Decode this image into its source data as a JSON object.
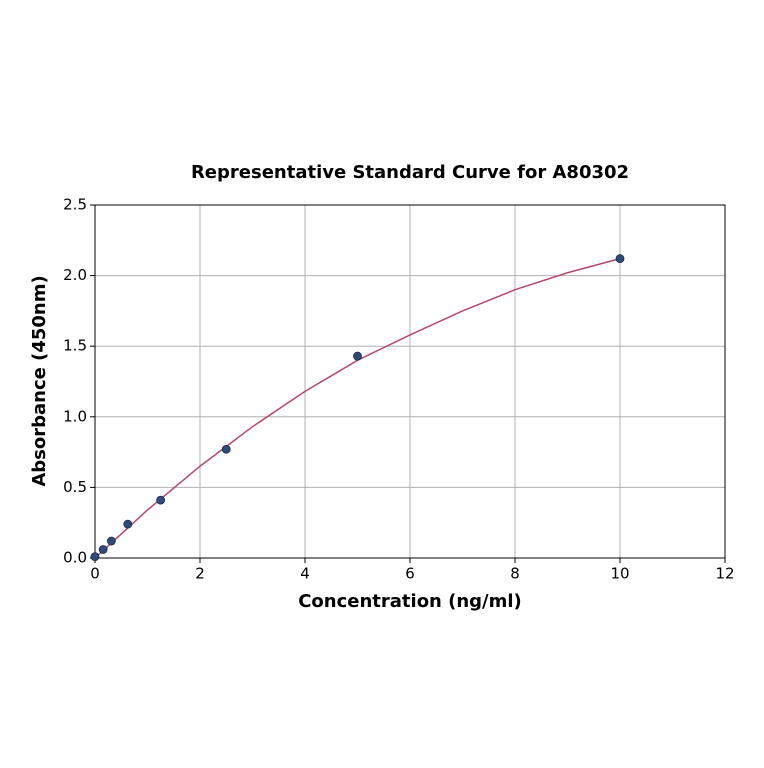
{
  "chart_data": {
    "type": "scatter",
    "title": "Representative Standard Curve for A80302",
    "x_label": "Concentration (ng/ml)",
    "y_label": "Absorbance (450nm)",
    "series": [
      {
        "color": "#2f4b7c",
        "x": [
          0,
          0.156,
          0.312,
          0.625,
          1.25,
          2.5,
          5,
          10
        ],
        "values": [
          0.01,
          0.06,
          0.12,
          0.24,
          0.41,
          0.77,
          1.43,
          2.12
        ]
      }
    ],
    "fit": {
      "color": "#b5476a",
      "x": [
        0,
        1,
        2,
        3,
        4,
        5,
        6,
        7,
        8,
        9,
        10
      ],
      "values": [
        0.0,
        0.34,
        0.65,
        0.93,
        1.18,
        1.4,
        1.58,
        1.75,
        1.9,
        2.02,
        2.12
      ]
    },
    "xlim": [
      0,
      12
    ],
    "xticks": [
      0,
      2,
      4,
      6,
      8,
      10,
      12
    ],
    "ylim": [
      0,
      2.5
    ],
    "yticks": [
      {
        "value": 0,
        "label": "0.0"
      },
      {
        "value": 0.5,
        "label": "0.5"
      },
      {
        "value": 1,
        "label": "1.0"
      },
      {
        "value": 1.5,
        "label": "1.5"
      },
      {
        "value": 2,
        "label": "2.0"
      },
      {
        "value": 2.5,
        "label": "2.5"
      }
    ],
    "grid": true
  }
}
